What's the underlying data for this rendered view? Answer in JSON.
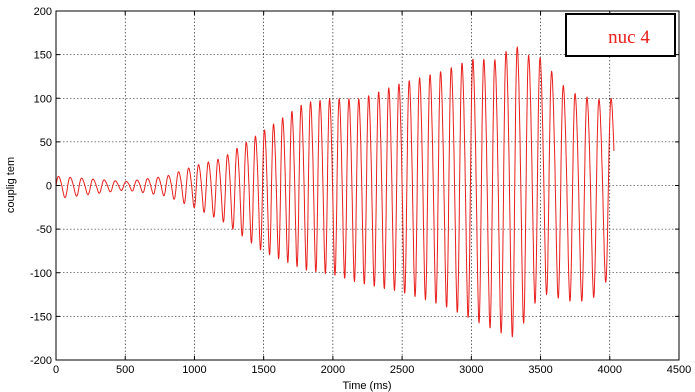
{
  "chart_data": {
    "type": "line",
    "title": "",
    "xlabel": "Time (ms)",
    "ylabel": "couplig tem",
    "xlim": [
      0,
      4500
    ],
    "ylim": [
      -200,
      200
    ],
    "xticks": [
      0,
      500,
      1000,
      1500,
      2000,
      2500,
      3000,
      3500,
      4000,
      4500
    ],
    "yticks": [
      -200,
      -150,
      -100,
      -50,
      0,
      50,
      100,
      150,
      200
    ],
    "xtick_labels": [
      "0",
      "500",
      "1000",
      "1500",
      "2000",
      "2500",
      "3000",
      "3500",
      "4000",
      "4500"
    ],
    "ytick_labels": [
      "-200",
      "-150",
      "-100",
      "-50",
      "0",
      "50",
      "100",
      "150",
      "200"
    ],
    "grid": true,
    "legend_position": "top-right",
    "series": [
      {
        "name": "nuc 4",
        "color": "#e8201c",
        "x_start": 0,
        "x_end": 4030,
        "envelope": {
          "x": [
            0,
            500,
            800,
            1000,
            1200,
            1500,
            1800,
            2000,
            2200,
            2500,
            2800,
            3000,
            3200,
            3300,
            3400,
            3500,
            3700,
            3800,
            3900,
            4030
          ],
          "upper": [
            12,
            5,
            12,
            25,
            35,
            70,
            105,
            110,
            110,
            130,
            145,
            160,
            160,
            180,
            165,
            160,
            120,
            115,
            110,
            110
          ],
          "lower": [
            -15,
            -5,
            -12,
            -25,
            -40,
            -75,
            -95,
            -100,
            -110,
            -120,
            -135,
            -150,
            -165,
            -170,
            -150,
            -120,
            -130,
            -130,
            -125,
            -95
          ]
        },
        "period_ms": [
          {
            "x": 0,
            "value": 85
          },
          {
            "x": 1500,
            "value": 65
          },
          {
            "x": 4030,
            "value": 88
          }
        ]
      }
    ]
  }
}
